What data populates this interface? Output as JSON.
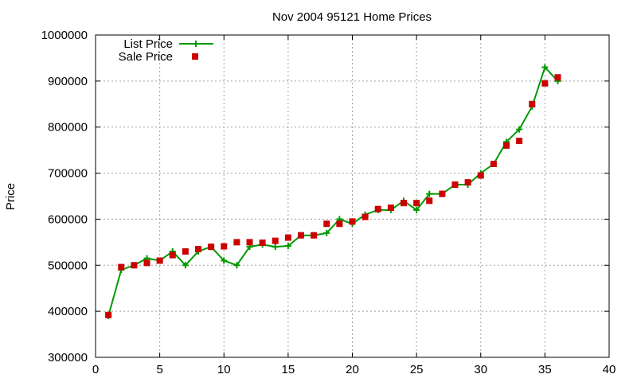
{
  "chart_data": {
    "type": "line",
    "title": "Nov 2004 95121 Home Prices",
    "xlabel": "",
    "ylabel": "Price",
    "xlim": [
      0,
      40
    ],
    "ylim": [
      300000,
      1000000
    ],
    "xticks": [
      0,
      5,
      10,
      15,
      20,
      25,
      30,
      35,
      40
    ],
    "yticks": [
      300000,
      400000,
      500000,
      600000,
      700000,
      800000,
      900000,
      1000000
    ],
    "grid": true,
    "legend_position": "top-left",
    "series": [
      {
        "name": "List Price",
        "style": "line-with-plus-markers",
        "color": "#009900",
        "x": [
          1,
          2,
          3,
          4,
          5,
          6,
          7,
          8,
          9,
          10,
          11,
          12,
          13,
          14,
          15,
          16,
          17,
          18,
          19,
          20,
          21,
          22,
          23,
          24,
          25,
          26,
          27,
          28,
          29,
          30,
          31,
          32,
          33,
          34,
          35,
          36
        ],
        "y": [
          390000,
          490000,
          500000,
          515000,
          510000,
          530000,
          500000,
          530000,
          540000,
          510000,
          500000,
          540000,
          545000,
          540000,
          542000,
          565000,
          565000,
          570000,
          600000,
          590000,
          610000,
          620000,
          620000,
          640000,
          620000,
          655000,
          655000,
          675000,
          675000,
          700000,
          720000,
          768000,
          795000,
          845000,
          930000,
          900000
        ]
      },
      {
        "name": "Sale Price",
        "style": "square-points",
        "color": "#cc0000",
        "x": [
          1,
          2,
          3,
          4,
          5,
          6,
          7,
          8,
          9,
          10,
          11,
          12,
          13,
          14,
          15,
          16,
          17,
          18,
          19,
          20,
          21,
          22,
          23,
          24,
          25,
          26,
          27,
          28,
          29,
          30,
          31,
          32,
          33,
          34,
          35,
          36
        ],
        "y": [
          392000,
          496000,
          500000,
          505000,
          510000,
          522000,
          530000,
          535000,
          540000,
          541000,
          550000,
          550000,
          549000,
          553000,
          560000,
          565000,
          565000,
          590000,
          590000,
          595000,
          605000,
          622000,
          625000,
          635000,
          635000,
          640000,
          655000,
          675000,
          680000,
          695000,
          720000,
          760000,
          770000,
          850000,
          895000,
          908000
        ]
      }
    ]
  }
}
